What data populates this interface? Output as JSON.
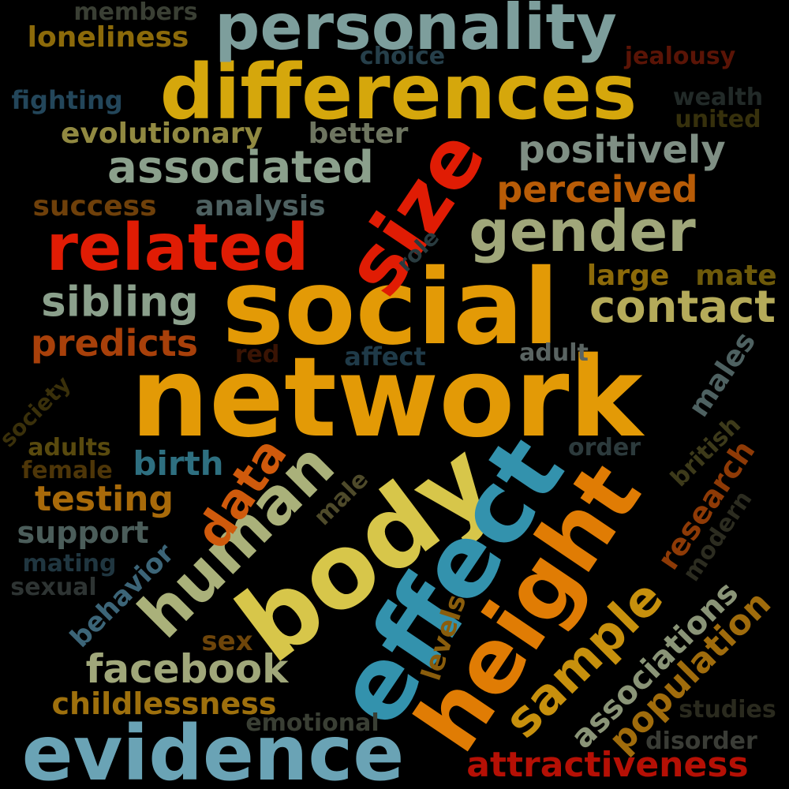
{
  "words": [
    {
      "text": "network",
      "color": "#e39a06"
    },
    {
      "text": "social",
      "color": "#e39a06"
    },
    {
      "text": "body",
      "color": "#d7c64a"
    },
    {
      "text": "effect",
      "color": "#3392ad"
    },
    {
      "text": "height",
      "color": "#e07c04"
    },
    {
      "text": "differences",
      "color": "#d5a70c"
    },
    {
      "text": "evidence",
      "color": "#6aa3b5"
    },
    {
      "text": "personality",
      "color": "#7d9e9c"
    },
    {
      "text": "size",
      "color": "#e01c04"
    },
    {
      "text": "related",
      "color": "#e01c04"
    },
    {
      "text": "human",
      "color": "#aab17a"
    },
    {
      "text": "gender",
      "color": "#a0a77a"
    },
    {
      "text": "sample",
      "color": "#c7900d"
    },
    {
      "text": "associated",
      "color": "#8ba08c"
    },
    {
      "text": "contact",
      "color": "#b5ab5a"
    },
    {
      "text": "attractiveness",
      "color": "#b51005"
    },
    {
      "text": "sibling",
      "color": "#8ba08c"
    },
    {
      "text": "facebook",
      "color": "#a0a77a"
    },
    {
      "text": "data",
      "color": "#d05a0c"
    },
    {
      "text": "positively",
      "color": "#7f8f84"
    },
    {
      "text": "perceived",
      "color": "#b85c07"
    },
    {
      "text": "predicts",
      "color": "#a8400a"
    },
    {
      "text": "population",
      "color": "#a06c0c"
    },
    {
      "text": "research",
      "color": "#8e3a06"
    },
    {
      "text": "testing",
      "color": "#a86a0a"
    },
    {
      "text": "associations",
      "color": "#8a9477"
    },
    {
      "text": "birth",
      "color": "#2e6f80"
    },
    {
      "text": "childlessness",
      "color": "#9e700d"
    },
    {
      "text": "support",
      "color": "#4b5d5a"
    },
    {
      "text": "evolutionary",
      "color": "#918941"
    },
    {
      "text": "better",
      "color": "#6e7560"
    },
    {
      "text": "loneliness",
      "color": "#8c6a0a"
    },
    {
      "text": "behavior",
      "color": "#3c6578"
    },
    {
      "text": "success",
      "color": "#6f400a"
    },
    {
      "text": "analysis",
      "color": "#4e6161"
    },
    {
      "text": "large",
      "color": "#8c6a0a"
    },
    {
      "text": "mate",
      "color": "#6e5a0a"
    },
    {
      "text": "levels",
      "color": "#8a5d0c"
    },
    {
      "text": "males",
      "color": "#4e6161"
    },
    {
      "text": "sex",
      "color": "#6e450a"
    },
    {
      "text": "fighting",
      "color": "#23465a"
    },
    {
      "text": "choice",
      "color": "#263f4a"
    },
    {
      "text": "jealousy",
      "color": "#5a1406"
    },
    {
      "text": "wealth",
      "color": "#222a28"
    },
    {
      "text": "united",
      "color": "#36300c"
    },
    {
      "text": "members",
      "color": "#3a3f34"
    },
    {
      "text": "role",
      "color": "#293b3f"
    },
    {
      "text": "affect",
      "color": "#1f3a48"
    },
    {
      "text": "adult",
      "color": "#5a6462"
    },
    {
      "text": "red",
      "color": "#3a1404"
    },
    {
      "text": "society",
      "color": "#3a300a"
    },
    {
      "text": "adults",
      "color": "#594a0e"
    },
    {
      "text": "female",
      "color": "#4e3608"
    },
    {
      "text": "order",
      "color": "#2c3a3c"
    },
    {
      "text": "british",
      "color": "#3d3a1a"
    },
    {
      "text": "male",
      "color": "#4e4a2a"
    },
    {
      "text": "modern",
      "color": "#2c2c20"
    },
    {
      "text": "mating",
      "color": "#203640"
    },
    {
      "text": "sexual",
      "color": "#2e3433"
    },
    {
      "text": "emotional",
      "color": "#3a3f34"
    },
    {
      "text": "studies",
      "color": "#2a2a1e"
    },
    {
      "text": "disorder",
      "color": "#3a3c36"
    }
  ]
}
